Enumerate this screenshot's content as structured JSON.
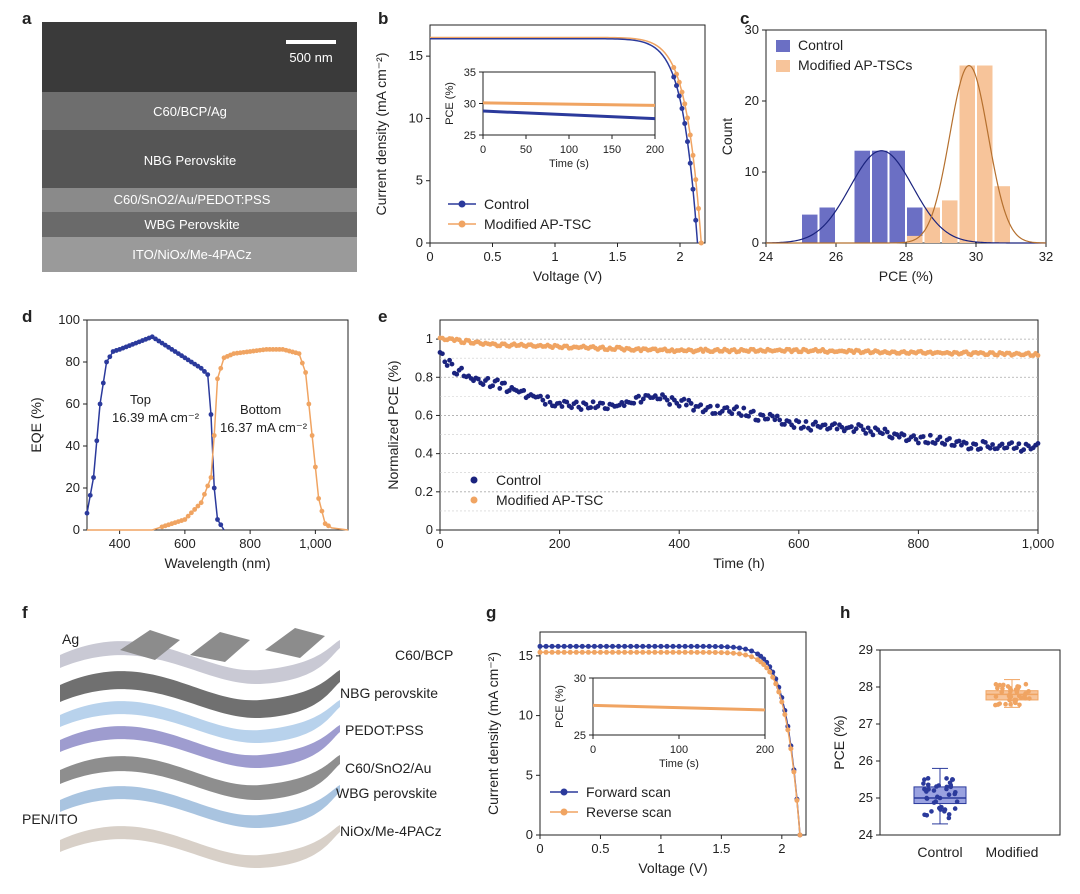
{
  "colors": {
    "control": "#2b3a9c",
    "modified": "#f0a462",
    "control_bar": "#6b6fc4",
    "modified_bar": "#f7c49a",
    "darkblue": "#1a237e"
  },
  "panel_labels": {
    "a": "a",
    "b": "b",
    "c": "c",
    "d": "d",
    "e": "e",
    "f": "f",
    "g": "g",
    "h": "h"
  },
  "panel_a": {
    "scale_bar": "500 nm",
    "layers": {
      "top": "C60/BCP/Ag",
      "nbg": "NBG Perovskite",
      "mid": "C60/SnO2/Au/PEDOT:PSS",
      "wbg": "WBG Perovskite",
      "bottom": "ITO/NiOx/Me-4PACz"
    }
  },
  "panel_f": {
    "layers": {
      "ag": "Ag",
      "c60bcp": "C60/BCP",
      "nbg": "NBG perovskite",
      "pedot": "PEDOT:PSS",
      "c60sno": "C60/SnO2/Au",
      "wbg": "WBG perovskite",
      "nio": "NiOx/Me-4PACz",
      "pen": "PEN/ITO"
    }
  },
  "chart_data": [
    {
      "panel": "b",
      "type": "line",
      "xlabel": "Voltage (V)",
      "ylabel": "Current density (mA cm⁻²)",
      "xlim": [
        0,
        2.2
      ],
      "ylim": [
        0,
        17.5
      ],
      "xticks": [
        0,
        0.5,
        1.0,
        1.5,
        2.0
      ],
      "yticks": [
        0,
        5,
        10,
        15
      ],
      "series": [
        {
          "name": "Control",
          "jsc": 16.4,
          "voc": 2.14
        },
        {
          "name": "Modified AP-TSC",
          "jsc": 16.5,
          "voc": 2.17
        }
      ],
      "inset": {
        "xlabel": "Time (s)",
        "ylabel": "PCE (%)",
        "xlim": [
          0,
          200
        ],
        "ylim": [
          25,
          35
        ],
        "xticks": [
          0,
          50,
          100,
          150,
          200
        ],
        "yticks": [
          25,
          30,
          35
        ],
        "series": [
          {
            "name": "Control",
            "start": 28.8,
            "end": 27.6
          },
          {
            "name": "Modified AP-TSC",
            "start": 30.1,
            "end": 29.7
          }
        ]
      }
    },
    {
      "panel": "c",
      "type": "bar",
      "xlabel": "PCE (%)",
      "ylabel": "Count",
      "xlim": [
        24,
        32
      ],
      "ylim": [
        0,
        30
      ],
      "xticks": [
        24,
        26,
        28,
        30,
        32
      ],
      "yticks": [
        0,
        10,
        20,
        30
      ],
      "series": [
        {
          "name": "Control",
          "centers": [
            25.25,
            25.75,
            26.75,
            27.25,
            27.75,
            28.25,
            28.75
          ],
          "values": [
            4,
            5,
            13,
            13,
            13,
            5,
            5
          ],
          "fit_mean": 27.3,
          "fit_sd": 0.9,
          "fit_peak": 13
        },
        {
          "name": "Modified AP-TSCs",
          "centers": [
            28.25,
            28.75,
            29.25,
            29.75,
            30.25,
            30.75
          ],
          "values": [
            1,
            5,
            6,
            25,
            25,
            8
          ],
          "fit_mean": 29.8,
          "fit_sd": 0.55,
          "fit_peak": 25
        }
      ]
    },
    {
      "panel": "d",
      "type": "line",
      "xlabel": "Wavelength (nm)",
      "ylabel": "EQE (%)",
      "xlim": [
        300,
        1100
      ],
      "ylim": [
        0,
        100
      ],
      "xticks": [
        400,
        600,
        800,
        1000
      ],
      "xticklabels": [
        "400",
        "600",
        "800",
        "1,000"
      ],
      "yticks": [
        0,
        20,
        40,
        60,
        80,
        100
      ],
      "annotations": {
        "top": [
          "Top",
          "16.39 mA cm⁻²"
        ],
        "bottom": [
          "Bottom",
          "16.37 mA cm⁻²"
        ]
      },
      "series": [
        {
          "name": "Top",
          "x": [
            300,
            320,
            340,
            360,
            380,
            400,
            450,
            500,
            550,
            600,
            650,
            670,
            680,
            690,
            700,
            720
          ],
          "y": [
            8,
            25,
            60,
            80,
            85,
            86,
            89,
            92,
            87,
            82,
            77,
            74,
            55,
            20,
            5,
            0
          ]
        },
        {
          "name": "Bottom",
          "x": [
            300,
            400,
            500,
            600,
            650,
            680,
            690,
            700,
            720,
            750,
            800,
            850,
            900,
            950,
            970,
            990,
            1010,
            1030,
            1050,
            1100
          ],
          "y": [
            0,
            0,
            0,
            5,
            13,
            25,
            45,
            72,
            82,
            84,
            85,
            86,
            86,
            84,
            75,
            45,
            15,
            3,
            1,
            0
          ]
        }
      ]
    },
    {
      "panel": "e",
      "type": "scatter",
      "xlabel": "Time (h)",
      "ylabel": "Normalized PCE (%)",
      "xlim": [
        0,
        1000
      ],
      "ylim": [
        0,
        1.1
      ],
      "xticks": [
        0,
        200,
        400,
        600,
        800,
        1000
      ],
      "xticklabels": [
        "0",
        "200",
        "400",
        "600",
        "800",
        "1,000"
      ],
      "yticks": [
        0,
        0.2,
        0.4,
        0.6,
        0.8,
        1.0
      ],
      "series": [
        {
          "name": "Control",
          "x": [
            0,
            20,
            50,
            100,
            150,
            200,
            300,
            350,
            400,
            450,
            500,
            600,
            700,
            800,
            900,
            1000
          ],
          "y": [
            0.93,
            0.85,
            0.8,
            0.76,
            0.71,
            0.65,
            0.65,
            0.7,
            0.67,
            0.63,
            0.62,
            0.55,
            0.53,
            0.48,
            0.44,
            0.43
          ]
        },
        {
          "name": "Modified AP-TSC",
          "x": [
            0,
            100,
            200,
            400,
            600,
            800,
            1000
          ],
          "y": [
            1.0,
            0.97,
            0.96,
            0.94,
            0.94,
            0.93,
            0.92
          ]
        }
      ]
    },
    {
      "panel": "g",
      "type": "line",
      "xlabel": "Voltage (V)",
      "ylabel": "Current density (mA cm⁻²)",
      "xlim": [
        0,
        2.2
      ],
      "ylim": [
        0,
        17
      ],
      "xticks": [
        0,
        0.5,
        1.0,
        1.5,
        2.0
      ],
      "yticks": [
        0,
        5,
        10,
        15
      ],
      "series": [
        {
          "name": "Forward scan",
          "jsc": 15.8,
          "voc": 2.15
        },
        {
          "name": "Reverse scan",
          "jsc": 15.3,
          "voc": 2.15
        }
      ],
      "inset": {
        "xlabel": "Time (s)",
        "ylabel": "PCE (%)",
        "xlim": [
          0,
          200
        ],
        "ylim": [
          25,
          30
        ],
        "xticks": [
          0,
          100,
          200
        ],
        "yticks": [
          25,
          30
        ],
        "series": [
          {
            "name": "Modified",
            "start": 27.6,
            "end": 27.2
          }
        ]
      }
    },
    {
      "panel": "h",
      "type": "box",
      "ylabel": "PCE (%)",
      "ylim": [
        24,
        29
      ],
      "yticks": [
        24,
        25,
        26,
        27,
        28,
        29
      ],
      "categories": [
        "Control",
        "Modified"
      ],
      "boxes": [
        {
          "name": "Control",
          "min": 24.3,
          "q1": 24.85,
          "median": 25.0,
          "q3": 25.3,
          "max": 25.8
        },
        {
          "name": "Modified",
          "min": 27.45,
          "q1": 27.65,
          "median": 27.8,
          "q3": 27.9,
          "max": 28.2
        }
      ]
    }
  ]
}
